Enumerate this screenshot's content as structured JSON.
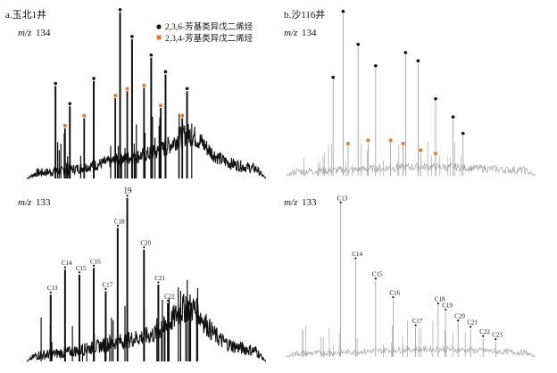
{
  "chart_data": [
    {
      "type": "line",
      "panel": "a",
      "title": "a.玉北1井",
      "subtitle_italic": "m/z",
      "subtitle_value": "134",
      "legend": [
        {
          "label": "2,3,6-芳基类异戊二烯烃",
          "marker": "circle",
          "color": "#111111"
        },
        {
          "label": "2,3,4-芳基类异戊二烯烃",
          "marker": "square",
          "color": "#e8742c"
        }
      ],
      "legend_position": "top-center",
      "peaks_black": [
        {
          "x": 0.12,
          "h": 0.55
        },
        {
          "x": 0.18,
          "h": 0.43
        },
        {
          "x": 0.28,
          "h": 0.58
        },
        {
          "x": 0.39,
          "h": 0.99
        },
        {
          "x": 0.44,
          "h": 0.83
        },
        {
          "x": 0.52,
          "h": 0.72
        },
        {
          "x": 0.58,
          "h": 0.62
        },
        {
          "x": 0.67,
          "h": 0.52
        }
      ],
      "peaks_orange": [
        {
          "x": 0.16,
          "h": 0.3
        },
        {
          "x": 0.24,
          "h": 0.36
        },
        {
          "x": 0.37,
          "h": 0.48
        },
        {
          "x": 0.42,
          "h": 0.52
        },
        {
          "x": 0.49,
          "h": 0.54
        },
        {
          "x": 0.56,
          "h": 0.42
        },
        {
          "x": 0.65,
          "h": 0.36
        }
      ]
    },
    {
      "type": "line",
      "panel": "b",
      "title": "b.沙116井",
      "subtitle_italic": "m/z",
      "subtitle_value": "134",
      "peaks_black": [
        {
          "x": 0.19,
          "h": 0.58
        },
        {
          "x": 0.23,
          "h": 0.98
        },
        {
          "x": 0.29,
          "h": 0.78
        },
        {
          "x": 0.36,
          "h": 0.65
        },
        {
          "x": 0.48,
          "h": 0.73
        },
        {
          "x": 0.53,
          "h": 0.68
        },
        {
          "x": 0.6,
          "h": 0.45
        },
        {
          "x": 0.67,
          "h": 0.34
        },
        {
          "x": 0.71,
          "h": 0.24
        }
      ],
      "peaks_orange": [
        {
          "x": 0.25,
          "h": 0.18
        },
        {
          "x": 0.33,
          "h": 0.2
        },
        {
          "x": 0.42,
          "h": 0.2
        },
        {
          "x": 0.47,
          "h": 0.18
        },
        {
          "x": 0.54,
          "h": 0.14
        },
        {
          "x": 0.6,
          "h": 0.12
        }
      ]
    },
    {
      "type": "line",
      "panel": "c",
      "subtitle_italic": "m/z",
      "subtitle_value": "133",
      "peaks_labeled": [
        {
          "x": 0.1,
          "h": 0.4,
          "label": "C13"
        },
        {
          "x": 0.16,
          "h": 0.55,
          "label": "C14"
        },
        {
          "x": 0.22,
          "h": 0.52,
          "label": "C15"
        },
        {
          "x": 0.28,
          "h": 0.56,
          "label": "C16"
        },
        {
          "x": 0.33,
          "h": 0.42,
          "label": "C17"
        },
        {
          "x": 0.38,
          "h": 0.8,
          "label": "C18"
        },
        {
          "x": 0.42,
          "h": 0.98,
          "label": "19"
        },
        {
          "x": 0.49,
          "h": 0.67,
          "label": "C20"
        },
        {
          "x": 0.55,
          "h": 0.46,
          "label": "C21"
        },
        {
          "x": 0.59,
          "h": 0.35,
          "label": "C22"
        }
      ]
    },
    {
      "type": "line",
      "panel": "d",
      "subtitle_italic": "m/z",
      "subtitle_value": "133",
      "peaks_labeled": [
        {
          "x": 0.22,
          "h": 0.98,
          "label": "C13"
        },
        {
          "x": 0.28,
          "h": 0.62,
          "label": "C14"
        },
        {
          "x": 0.36,
          "h": 0.49,
          "label": "C15"
        },
        {
          "x": 0.43,
          "h": 0.37,
          "label": "C16"
        },
        {
          "x": 0.52,
          "h": 0.19,
          "label": "C17"
        },
        {
          "x": 0.61,
          "h": 0.33,
          "label": "C18"
        },
        {
          "x": 0.64,
          "h": 0.29,
          "label": "C19"
        },
        {
          "x": 0.69,
          "h": 0.22,
          "label": "C20"
        },
        {
          "x": 0.74,
          "h": 0.18,
          "label": "C21"
        },
        {
          "x": 0.79,
          "h": 0.12,
          "label": "C22"
        },
        {
          "x": 0.84,
          "h": 0.1,
          "label": "C23"
        }
      ]
    }
  ]
}
